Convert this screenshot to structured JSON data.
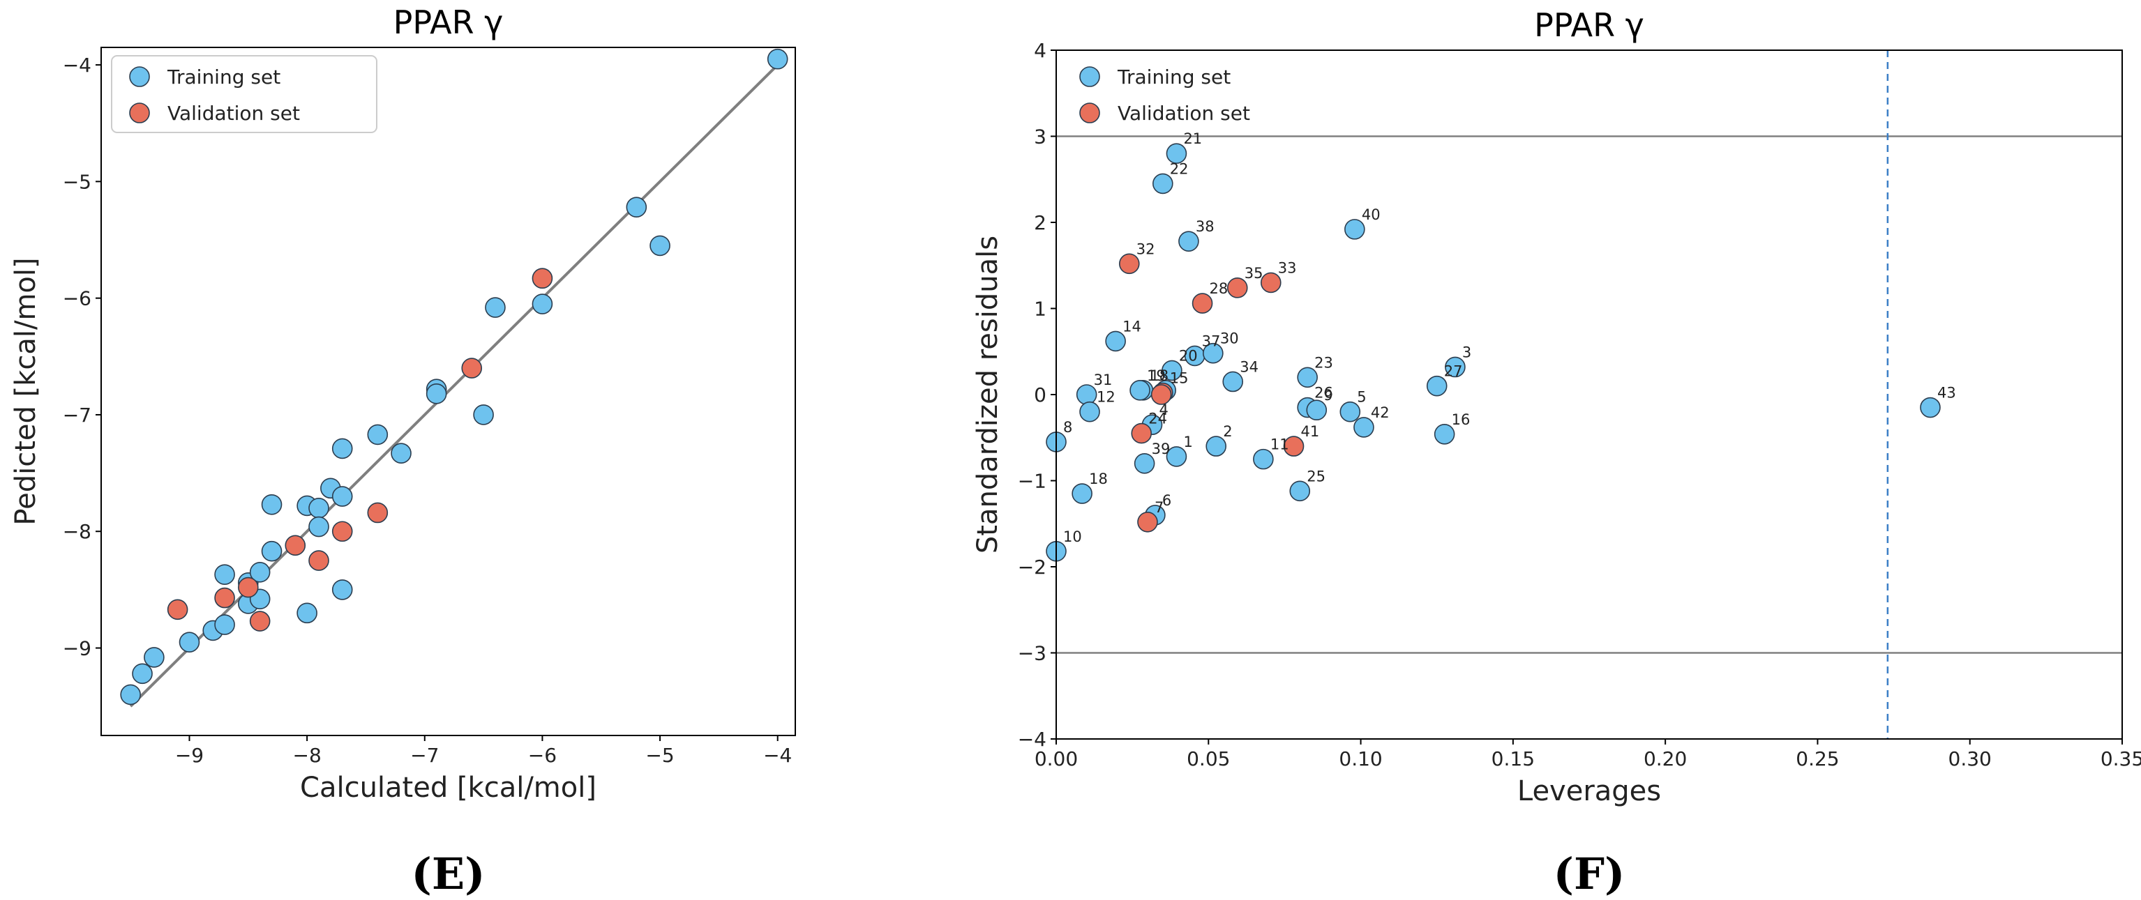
{
  "colors": {
    "training": "#6EC2EE",
    "validation": "#E8705B",
    "edge": "#2b3d4f",
    "fit_line": "#7f7f7f",
    "hline": "#808080",
    "vline": "#3b7ec6"
  },
  "chart_data": [
    {
      "type": "scatter",
      "panel_label": "(E)",
      "title": "PPAR γ",
      "xlabel": "Calculated [kcal/mol]",
      "ylabel": "Pedicted [kcal/mol]",
      "xlim": [
        -9.75,
        -3.85
      ],
      "ylim": [
        -9.75,
        -3.85
      ],
      "xticks": [
        -9,
        -8,
        -7,
        -6,
        -5,
        -4
      ],
      "yticks": [
        -9,
        -8,
        -7,
        -6,
        -5,
        -4
      ],
      "fit_line": {
        "from": [
          -9.5,
          -9.5
        ],
        "to": [
          -4,
          -4
        ]
      },
      "legend": [
        "Training set",
        "Validation set"
      ],
      "series": [
        {
          "name": "Training set",
          "points": [
            [
              -9.5,
              -9.4
            ],
            [
              -9.4,
              -9.22
            ],
            [
              -9.3,
              -9.08
            ],
            [
              -9.0,
              -8.95
            ],
            [
              -8.8,
              -8.85
            ],
            [
              -8.7,
              -8.8
            ],
            [
              -8.7,
              -8.37
            ],
            [
              -8.5,
              -8.44
            ],
            [
              -8.5,
              -8.62
            ],
            [
              -8.4,
              -8.58
            ],
            [
              -8.4,
              -8.35
            ],
            [
              -8.3,
              -8.17
            ],
            [
              -8.3,
              -7.77
            ],
            [
              -8.0,
              -7.78
            ],
            [
              -7.9,
              -7.8
            ],
            [
              -7.9,
              -7.96
            ],
            [
              -8.0,
              -8.7
            ],
            [
              -7.8,
              -7.63
            ],
            [
              -7.7,
              -7.7
            ],
            [
              -7.7,
              -7.29
            ],
            [
              -7.7,
              -8.5
            ],
            [
              -7.4,
              -7.17
            ],
            [
              -7.2,
              -7.33
            ],
            [
              -6.9,
              -6.78
            ],
            [
              -6.9,
              -6.82
            ],
            [
              -6.5,
              -7.0
            ],
            [
              -6.4,
              -6.08
            ],
            [
              -6.0,
              -6.05
            ],
            [
              -5.2,
              -5.22
            ],
            [
              -5.0,
              -5.55
            ],
            [
              -4.0,
              -3.95
            ]
          ]
        },
        {
          "name": "Validation set",
          "points": [
            [
              -9.1,
              -8.67
            ],
            [
              -8.7,
              -8.57
            ],
            [
              -8.5,
              -8.48
            ],
            [
              -8.4,
              -8.77
            ],
            [
              -8.1,
              -8.12
            ],
            [
              -7.9,
              -8.25
            ],
            [
              -7.7,
              -8.0
            ],
            [
              -7.4,
              -7.84
            ],
            [
              -6.6,
              -6.6
            ],
            [
              -6.0,
              -5.83
            ]
          ]
        }
      ]
    },
    {
      "type": "scatter",
      "panel_label": "(F)",
      "title": "PPAR γ",
      "xlabel": "Leverages",
      "ylabel": "Standardized residuals",
      "xlim": [
        0.0,
        0.35
      ],
      "ylim": [
        -4,
        4
      ],
      "xticks": [
        "0.00",
        "0.05",
        "0.10",
        "0.15",
        "0.20",
        "0.25",
        "0.30",
        "0.35"
      ],
      "yticks": [
        4,
        3,
        2,
        1,
        0,
        -1,
        -2,
        -3,
        -4
      ],
      "hlines": [
        3,
        -3
      ],
      "vline": 0.273,
      "legend": [
        "Training set",
        "Validation set"
      ],
      "series": [
        {
          "name": "Training set",
          "points": [
            {
              "id": "21",
              "x": 0.0395,
              "y": 2.8
            },
            {
              "id": "22",
              "x": 0.035,
              "y": 2.45
            },
            {
              "id": "38",
              "x": 0.0435,
              "y": 1.78
            },
            {
              "id": "40",
              "x": 0.098,
              "y": 1.92
            },
            {
              "id": "14",
              "x": 0.0195,
              "y": 0.62
            },
            {
              "id": "37",
              "x": 0.0455,
              "y": 0.45
            },
            {
              "id": "30",
              "x": 0.0515,
              "y": 0.48
            },
            {
              "id": "20",
              "x": 0.038,
              "y": 0.28
            },
            {
              "id": "34",
              "x": 0.058,
              "y": 0.15
            },
            {
              "id": "23",
              "x": 0.0825,
              "y": 0.2
            },
            {
              "id": "3",
              "x": 0.131,
              "y": 0.32
            },
            {
              "id": "27",
              "x": 0.125,
              "y": 0.1
            },
            {
              "id": "31",
              "x": 0.01,
              "y": 0.0
            },
            {
              "id": "12",
              "x": 0.011,
              "y": -0.2
            },
            {
              "id": "18",
              "x": 0.0285,
              "y": 0.05
            },
            {
              "id": "19",
              "x": 0.0275,
              "y": 0.05
            },
            {
              "id": "",
              "x": 0.036,
              "y": 0.05
            },
            {
              "id": "26",
              "x": 0.0825,
              "y": -0.15
            },
            {
              "id": "9",
              "x": 0.0855,
              "y": -0.18
            },
            {
              "id": "5",
              "x": 0.0965,
              "y": -0.2
            },
            {
              "id": "42",
              "x": 0.101,
              "y": -0.38
            },
            {
              "id": "16",
              "x": 0.1275,
              "y": -0.46
            },
            {
              "id": "43",
              "x": 0.287,
              "y": -0.15
            },
            {
              "id": "8",
              "x": 0.0,
              "y": -0.55
            },
            {
              "id": "4",
              "x": 0.0315,
              "y": -0.35
            },
            {
              "id": "2",
              "x": 0.0525,
              "y": -0.6
            },
            {
              "id": "1",
              "x": 0.0395,
              "y": -0.72
            },
            {
              "id": "39",
              "x": 0.029,
              "y": -0.8
            },
            {
              "id": "11",
              "x": 0.068,
              "y": -0.75
            },
            {
              "id": "18",
              "x": 0.0085,
              "y": -1.15
            },
            {
              "id": "25",
              "x": 0.08,
              "y": -1.12
            },
            {
              "id": "6",
              "x": 0.0325,
              "y": -1.4
            },
            {
              "id": "10",
              "x": 0.0,
              "y": -1.82
            }
          ]
        },
        {
          "name": "Validation set",
          "points": [
            {
              "id": "32",
              "x": 0.024,
              "y": 1.52
            },
            {
              "id": "28",
              "x": 0.048,
              "y": 1.06
            },
            {
              "id": "35",
              "x": 0.0595,
              "y": 1.24
            },
            {
              "id": "33",
              "x": 0.0705,
              "y": 1.3
            },
            {
              "id": "15",
              "x": 0.035,
              "y": 0.02
            },
            {
              "id": "",
              "x": 0.0345,
              "y": 0.0
            },
            {
              "id": "24",
              "x": 0.028,
              "y": -0.45
            },
            {
              "id": "41",
              "x": 0.078,
              "y": -0.6
            },
            {
              "id": "7",
              "x": 0.03,
              "y": -1.48
            }
          ]
        }
      ]
    }
  ]
}
